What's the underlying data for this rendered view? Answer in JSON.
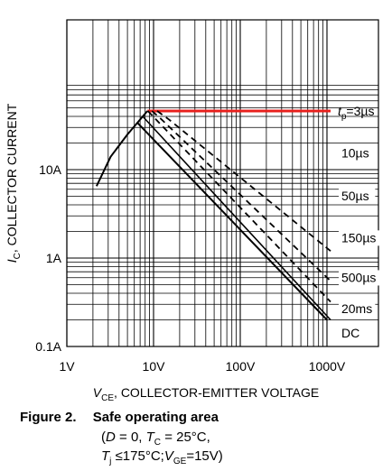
{
  "chart_data": {
    "type": "line",
    "x_scale": "log",
    "y_scale": "log",
    "xlim": [
      1,
      1000
    ],
    "ylim": [
      0.1,
      60
    ],
    "xlabel": "V_CE, COLLECTOR-EMITTER VOLTAGE",
    "xlabel_main": "V",
    "xlabel_sub": "CE",
    "xlabel_rest": ", COLLECTOR-EMITTER VOLTAGE",
    "ylabel": "I_C, COLLECTOR CURRENT",
    "ylabel_main": "I",
    "ylabel_sub": "C",
    "ylabel_rest": ", COLLECTOR CURRENT",
    "x_ticks": [
      {
        "value": 1,
        "label": "1V"
      },
      {
        "value": 10,
        "label": "10V"
      },
      {
        "value": 100,
        "label": "100V"
      },
      {
        "value": 1000,
        "label": "1000V"
      }
    ],
    "y_ticks": [
      {
        "value": 0.1,
        "label": "0.1A"
      },
      {
        "value": 1,
        "label": "1A"
      },
      {
        "value": 10,
        "label": "10A"
      }
    ],
    "grid": true,
    "series": [
      {
        "label": "t_p=3µs",
        "style": "red",
        "color": "#e8201c",
        "points": [
          [
            8.5,
            46
          ],
          [
            300,
            46
          ],
          [
            1100,
            46
          ]
        ]
      },
      {
        "label": "10µs",
        "style": "dashed",
        "points": [
          [
            11,
            46
          ],
          [
            15,
            37
          ],
          [
            1100,
            1.2
          ]
        ]
      },
      {
        "label": "50µs",
        "style": "dashed",
        "points": [
          [
            9.6,
            46
          ],
          [
            12,
            38
          ],
          [
            1100,
            0.55
          ]
        ]
      },
      {
        "label": "150µs",
        "style": "dashed",
        "points": [
          [
            8.6,
            46
          ],
          [
            1100,
            0.32
          ]
        ]
      },
      {
        "label": "500µs",
        "style": "solid-thin",
        "points": [
          [
            7.5,
            40
          ],
          [
            1100,
            0.2
          ]
        ]
      },
      {
        "label": "DC",
        "style": "solid",
        "points": [
          [
            6.5,
            34
          ],
          [
            1000,
            0.2
          ]
        ]
      },
      {
        "label": "",
        "style": "solid",
        "points": [
          [
            2.2,
            6.5
          ],
          [
            3.2,
            14
          ],
          [
            5,
            25
          ],
          [
            8.5,
            46
          ]
        ]
      }
    ],
    "curve_labels": [
      {
        "text": "10µs",
        "x": 1100,
        "y": 14
      },
      {
        "text": "50µs",
        "x": 1100,
        "y": 4.6
      },
      {
        "text": "150µs",
        "x": 1100,
        "y": 1.55
      },
      {
        "text": "500µs",
        "x": 1100,
        "y": 0.55
      },
      {
        "text": "20ms",
        "x": 1100,
        "y": 0.245
      },
      {
        "text": "DC",
        "x": 1100,
        "y": 0.13
      }
    ],
    "tp_label": {
      "main": "t",
      "sub": "p",
      "rest": "=3µs"
    }
  },
  "caption": {
    "number": "Figure 2.",
    "title": "Safe operating area",
    "line2": "(D = 0, T_C = 25°C,",
    "line3": "T_j ≤175°C; V_GE=15V)"
  }
}
